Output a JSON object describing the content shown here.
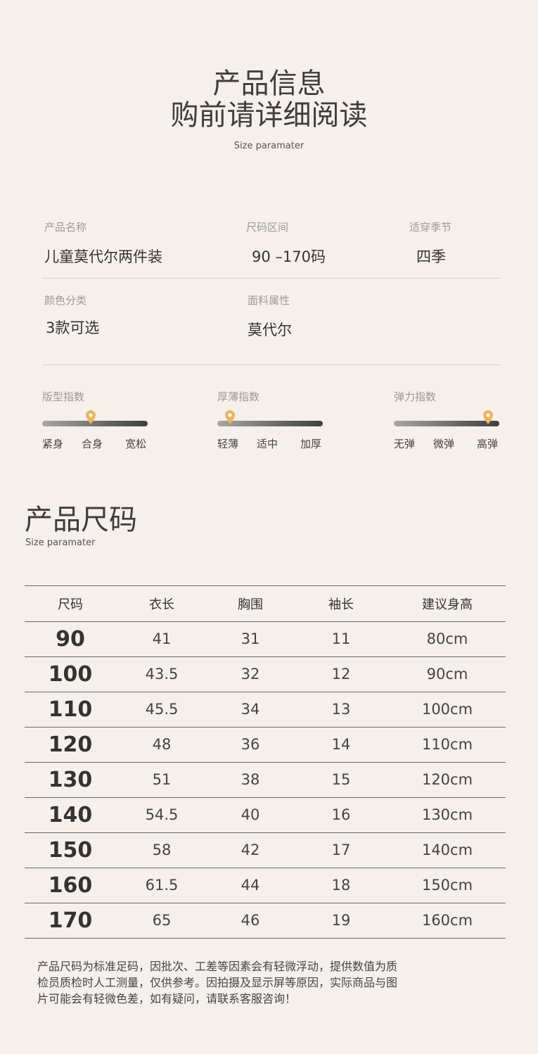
{
  "header": {
    "title1": "产品信息",
    "title2": "购前请详细阅读",
    "subtitle": "Size paramater"
  },
  "info": [
    {
      "label": "产品名称",
      "value": "儿童莫代尔两件装"
    },
    {
      "label": "尺码区间",
      "value": "90 –170码"
    },
    {
      "label": "适穿季节",
      "value": "四季"
    },
    {
      "label": "颜色分类",
      "value": "3款可选"
    },
    {
      "label": "面料属性",
      "value": "莫代尔"
    }
  ],
  "indices": [
    {
      "label": "版型指数",
      "ticks": [
        "紧身",
        "合身",
        "宽松"
      ],
      "level": 0.46
    },
    {
      "label": "厚薄指数",
      "ticks": [
        "轻薄",
        "适中",
        "加厚"
      ],
      "level": 0.12
    },
    {
      "label": "弹力指数",
      "ticks": [
        "无弹",
        "微弹",
        "高弹"
      ],
      "level": 0.89
    }
  ],
  "accent": "#f0b45c",
  "size_section": {
    "title": "产品尺码",
    "subtitle": "Size paramater"
  },
  "table": {
    "headers": [
      "尺码",
      "衣长",
      "胸围",
      "袖长",
      "建议身高"
    ],
    "rows": [
      [
        "90",
        "41",
        "31",
        "11",
        "80cm"
      ],
      [
        "100",
        "43.5",
        "32",
        "12",
        "90cm"
      ],
      [
        "110",
        "45.5",
        "34",
        "13",
        "100cm"
      ],
      [
        "120",
        "48",
        "36",
        "14",
        "110cm"
      ],
      [
        "130",
        "51",
        "38",
        "15",
        "120cm"
      ],
      [
        "140",
        "54.5",
        "40",
        "16",
        "130cm"
      ],
      [
        "150",
        "58",
        "42",
        "17",
        "140cm"
      ],
      [
        "160",
        "61.5",
        "44",
        "18",
        "150cm"
      ],
      [
        "170",
        "65",
        "46",
        "19",
        "160cm"
      ]
    ]
  },
  "note": "产品尺码为标准足码，因批次、工差等因素会有轻微浮动，提供数值为质检员质检时人工测量，仅供参考。因拍摄及显示屏等原因，实际商品与图片可能会有轻微色差，如有疑问，请联系客服咨询！"
}
